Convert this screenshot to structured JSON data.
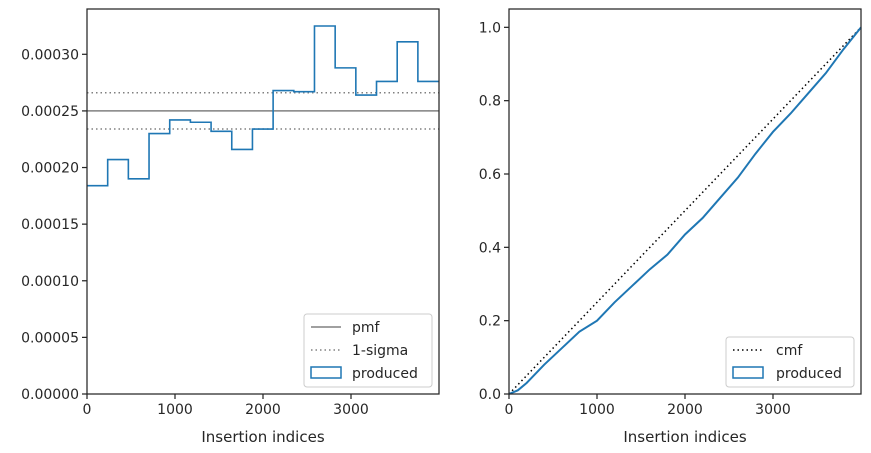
{
  "chart_data": [
    {
      "type": "step",
      "xlabel": "Insertion indices",
      "ylabel": "",
      "title": "",
      "xlim": [
        0,
        4000
      ],
      "ylim": [
        0,
        0.00034
      ],
      "xticks": [
        0,
        1000,
        2000,
        3000
      ],
      "yticks": [
        0,
        5e-05,
        0.0001,
        0.00015,
        0.0002,
        0.00025,
        0.0003
      ],
      "xtick_labels": [
        "0",
        "1000",
        "2000",
        "3000"
      ],
      "ytick_labels": [
        "0.00000",
        "0.00005",
        "0.00010",
        "0.00015",
        "0.00020",
        "0.00025",
        "0.00030"
      ],
      "grid": false,
      "legend_position": "bottom-right",
      "reference_lines": [
        {
          "name": "pmf",
          "y": 0.00025,
          "style": "solid",
          "color": "#808080"
        },
        {
          "name": "1-sigma",
          "y": 0.000266,
          "style": "dotted",
          "color": "#808080"
        },
        {
          "name": "1-sigma",
          "y": 0.000234,
          "style": "dotted",
          "color": "#808080"
        }
      ],
      "series": [
        {
          "name": "produced",
          "color": "#1f77b4",
          "bin_edges": [
            0,
            235,
            470,
            705,
            940,
            1175,
            1410,
            1645,
            1880,
            2115,
            2350,
            2585,
            2820,
            3055,
            3290,
            3525,
            3760,
            4000
          ],
          "values": [
            0.000184,
            0.000207,
            0.00019,
            0.00023,
            0.000242,
            0.00024,
            0.000232,
            0.000216,
            0.000234,
            0.000268,
            0.000267,
            0.000325,
            0.000288,
            0.000264,
            0.000276,
            0.000311,
            0.000276
          ]
        }
      ],
      "legend": [
        {
          "label": "pmf",
          "kind": "solid-line"
        },
        {
          "label": "1-sigma",
          "kind": "dotted-line"
        },
        {
          "label": "produced",
          "kind": "patch"
        }
      ]
    },
    {
      "type": "line",
      "xlabel": "Insertion indices",
      "ylabel": "",
      "title": "",
      "xlim": [
        0,
        4000
      ],
      "ylim": [
        0,
        1.05
      ],
      "xticks": [
        0,
        1000,
        2000,
        3000
      ],
      "yticks": [
        0,
        0.2,
        0.4,
        0.6,
        0.8,
        1.0
      ],
      "xtick_labels": [
        "0",
        "1000",
        "2000",
        "3000"
      ],
      "ytick_labels": [
        "0.0",
        "0.2",
        "0.4",
        "0.6",
        "0.8",
        "1.0"
      ],
      "grid": false,
      "legend_position": "bottom-right",
      "series": [
        {
          "name": "cmf",
          "style": "dotted",
          "color": "#000000",
          "x": [
            0,
            4000
          ],
          "y": [
            0,
            1.0
          ]
        },
        {
          "name": "produced",
          "style": "solid",
          "color": "#1f77b4",
          "x": [
            0,
            100,
            200,
            400,
            600,
            800,
            1000,
            1200,
            1400,
            1600,
            1800,
            2000,
            2200,
            2400,
            2600,
            2800,
            3000,
            3200,
            3400,
            3600,
            3800,
            4000
          ],
          "y": [
            0,
            0.01,
            0.03,
            0.08,
            0.125,
            0.17,
            0.2,
            0.25,
            0.295,
            0.34,
            0.38,
            0.435,
            0.48,
            0.535,
            0.59,
            0.655,
            0.715,
            0.765,
            0.82,
            0.875,
            0.94,
            1.0
          ]
        }
      ],
      "legend": [
        {
          "label": "cmf",
          "kind": "dotted-line"
        },
        {
          "label": "produced",
          "kind": "patch"
        }
      ]
    }
  ]
}
